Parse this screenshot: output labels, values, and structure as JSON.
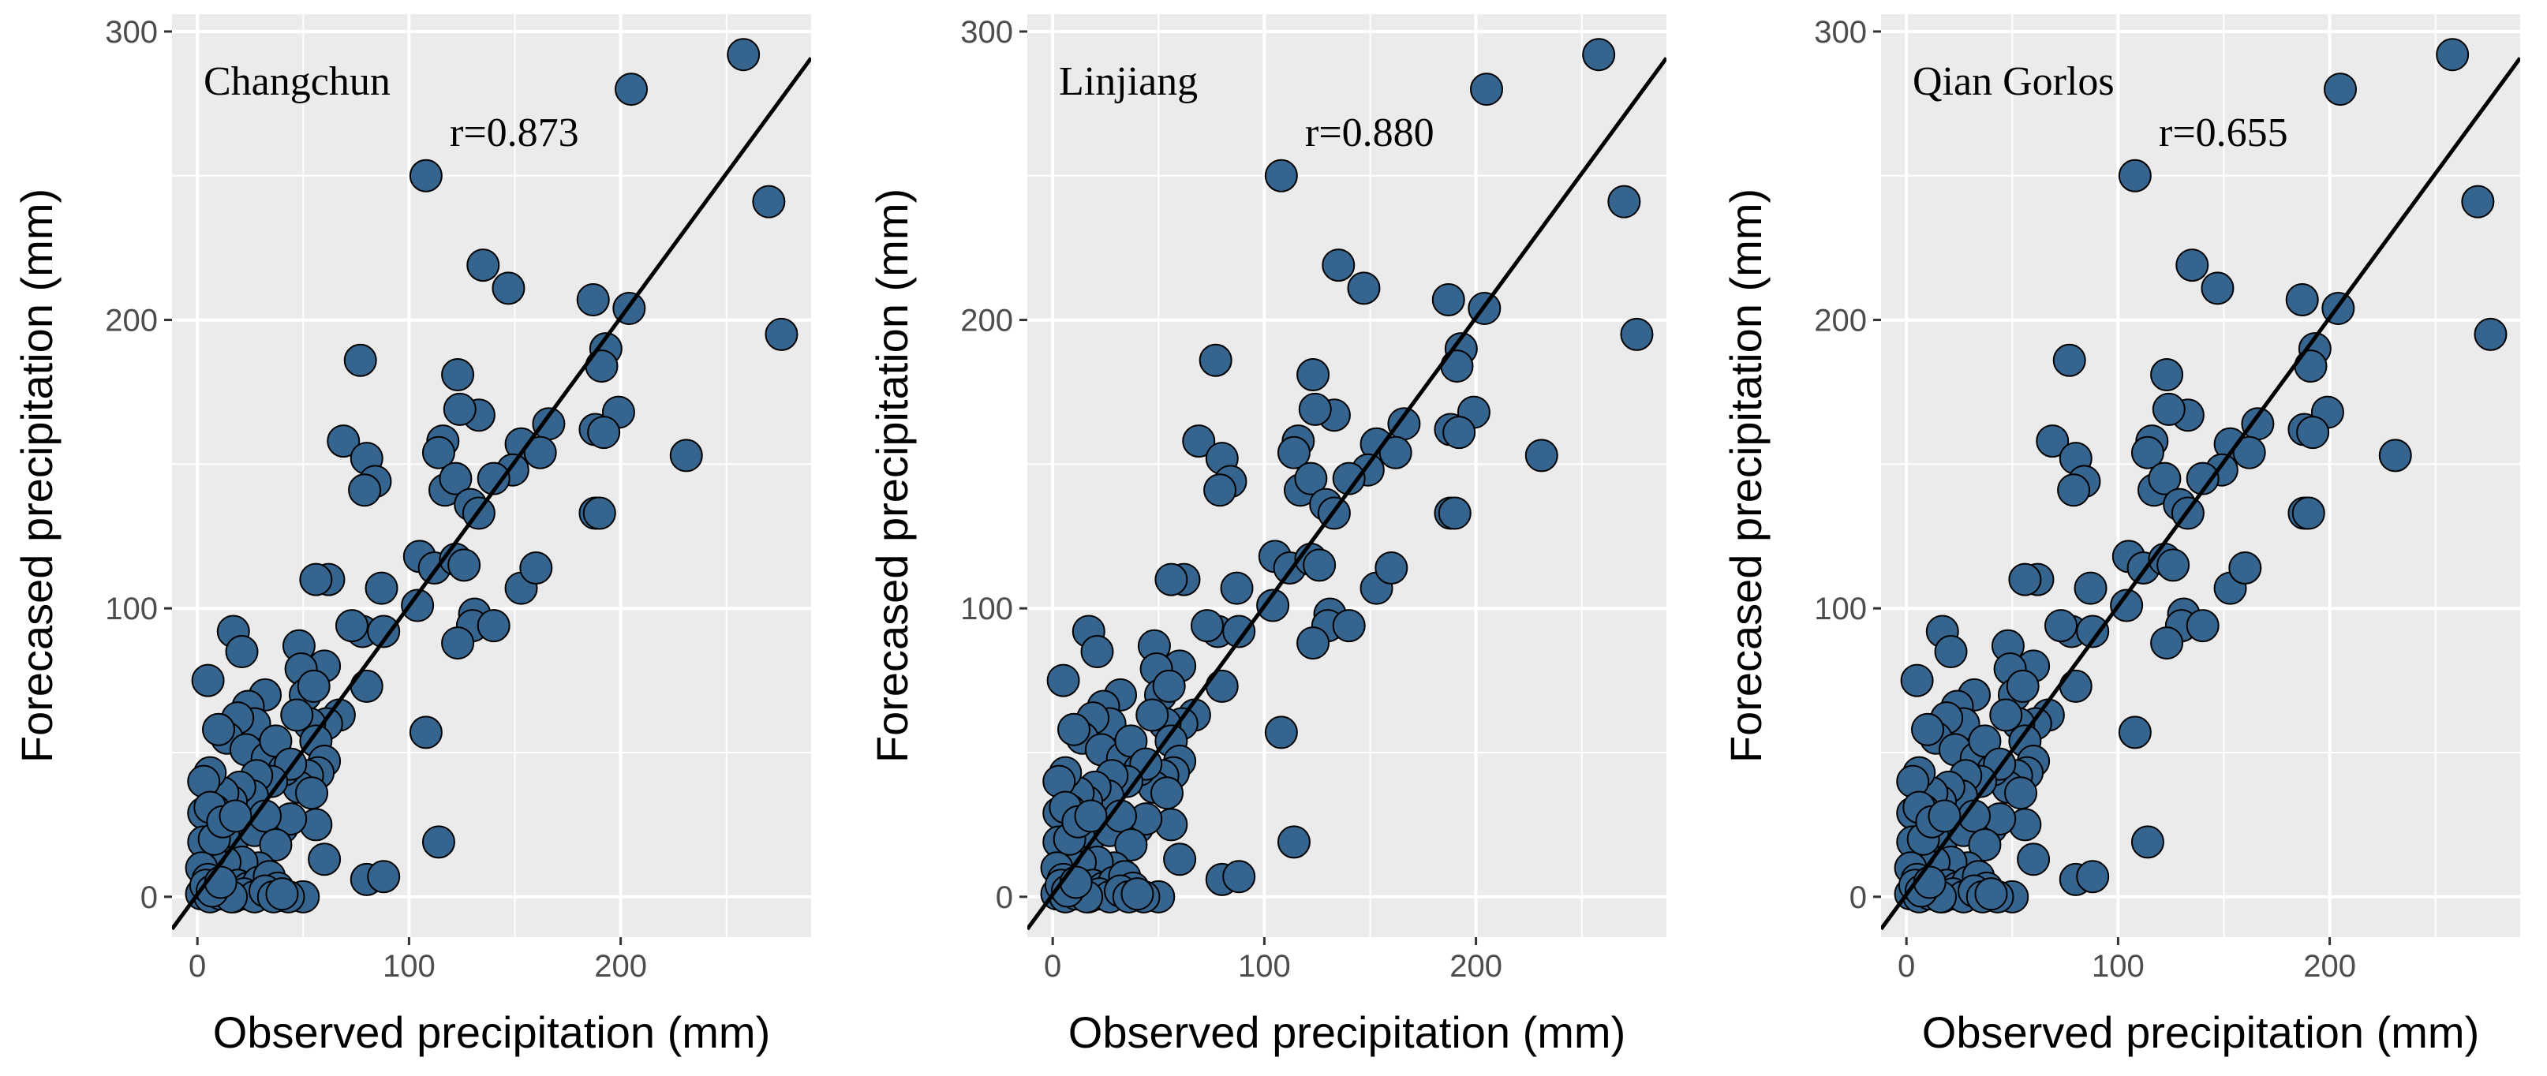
{
  "chart_data": {
    "type": "scatter",
    "xlabel": "Observed precipitation (mm)",
    "ylabel": "Forecased precipitation (mm)",
    "xlim": [
      -12,
      290
    ],
    "ylim": [
      -14,
      306
    ],
    "xticks": [
      0,
      100,
      200
    ],
    "yticks": [
      0,
      100,
      200,
      300
    ],
    "grid": true,
    "colors": {
      "panel_bg": "#ebebeb",
      "grid": "#ffffff",
      "point_fill": "#35658f",
      "point_stroke": "#000000",
      "line": "#000000"
    },
    "panels": [
      {
        "title": "Changchun",
        "r_label": "r=0.873",
        "fit": {
          "slope": 1.0,
          "intercept": 0.8
        }
      },
      {
        "title": "Linjiang",
        "r_label": "r=0.880",
        "fit": {
          "slope": 1.0,
          "intercept": 0.8
        }
      },
      {
        "title": "Qian Gorlos",
        "r_label": "r=0.655",
        "fit": {
          "slope": 1.0,
          "intercept": 0.8
        }
      }
    ],
    "points": [
      [
        258,
        292
      ],
      [
        205,
        280
      ],
      [
        270,
        241
      ],
      [
        276,
        195
      ],
      [
        108,
        250
      ],
      [
        135,
        219
      ],
      [
        147,
        211
      ],
      [
        187,
        207
      ],
      [
        204,
        204
      ],
      [
        193,
        190
      ],
      [
        191,
        184
      ],
      [
        199,
        168
      ],
      [
        188,
        162
      ],
      [
        192,
        161
      ],
      [
        188,
        133
      ],
      [
        190,
        133
      ],
      [
        231,
        153
      ],
      [
        166,
        164
      ],
      [
        153,
        157
      ],
      [
        162,
        154
      ],
      [
        149,
        148
      ],
      [
        140,
        145
      ],
      [
        133,
        167
      ],
      [
        123,
        181
      ],
      [
        124,
        169
      ],
      [
        116,
        158
      ],
      [
        114,
        154
      ],
      [
        117,
        141
      ],
      [
        122,
        145
      ],
      [
        129,
        136
      ],
      [
        133,
        133
      ],
      [
        105,
        118
      ],
      [
        104,
        101
      ],
      [
        112,
        114
      ],
      [
        122,
        117
      ],
      [
        126,
        115
      ],
      [
        131,
        98
      ],
      [
        130,
        94
      ],
      [
        140,
        94
      ],
      [
        123,
        88
      ],
      [
        153,
        107
      ],
      [
        160,
        114
      ],
      [
        108,
        57
      ],
      [
        114,
        19
      ],
      [
        77,
        186
      ],
      [
        69,
        158
      ],
      [
        80,
        152
      ],
      [
        84,
        144
      ],
      [
        79,
        141
      ],
      [
        78,
        92
      ],
      [
        87,
        107
      ],
      [
        62,
        110
      ],
      [
        56,
        110
      ],
      [
        88,
        92
      ],
      [
        73,
        94
      ],
      [
        80,
        73
      ],
      [
        60,
        80
      ],
      [
        48,
        87
      ],
      [
        49,
        79
      ],
      [
        51,
        70
      ],
      [
        55,
        73
      ],
      [
        67,
        63
      ],
      [
        61,
        60
      ],
      [
        53,
        60
      ],
      [
        47,
        63
      ],
      [
        56,
        54
      ],
      [
        60,
        47
      ],
      [
        57,
        43
      ],
      [
        52,
        42
      ],
      [
        48,
        38
      ],
      [
        54,
        36
      ],
      [
        56,
        25
      ],
      [
        60,
        13
      ],
      [
        80,
        6
      ],
      [
        88,
        7
      ],
      [
        50,
        0
      ],
      [
        17,
        92
      ],
      [
        21,
        85
      ],
      [
        5,
        75
      ],
      [
        32,
        70
      ],
      [
        24,
        66
      ],
      [
        27,
        60
      ],
      [
        19,
        62
      ],
      [
        14,
        55
      ],
      [
        10,
        58
      ],
      [
        23,
        51
      ],
      [
        33,
        48
      ],
      [
        37,
        54
      ],
      [
        41,
        44
      ],
      [
        44,
        46
      ],
      [
        35,
        40
      ],
      [
        28,
        42
      ],
      [
        26,
        35
      ],
      [
        20,
        38
      ],
      [
        16,
        33
      ],
      [
        12,
        36
      ],
      [
        6,
        43
      ],
      [
        3,
        40
      ],
      [
        8,
        30
      ],
      [
        3,
        29
      ],
      [
        13,
        24
      ],
      [
        19,
        22
      ],
      [
        27,
        23
      ],
      [
        40,
        24
      ],
      [
        44,
        27
      ],
      [
        32,
        28
      ],
      [
        37,
        18
      ],
      [
        29,
        10
      ],
      [
        21,
        12
      ],
      [
        13,
        12
      ],
      [
        6,
        15
      ],
      [
        3,
        19
      ],
      [
        8,
        20
      ],
      [
        2,
        10
      ],
      [
        5,
        6
      ],
      [
        9,
        4
      ],
      [
        14,
        2
      ],
      [
        19,
        4
      ],
      [
        24,
        3
      ],
      [
        29,
        5
      ],
      [
        34,
        7
      ],
      [
        38,
        3
      ],
      [
        43,
        0
      ],
      [
        2,
        1
      ],
      [
        6,
        0
      ],
      [
        11,
        1
      ],
      [
        17,
        0
      ],
      [
        22,
        1
      ],
      [
        27,
        0
      ],
      [
        32,
        2
      ],
      [
        36,
        0
      ],
      [
        40,
        1
      ],
      [
        16,
        0
      ],
      [
        4,
        4
      ],
      [
        7,
        2
      ],
      [
        11,
        5
      ],
      [
        6,
        31
      ],
      [
        12,
        26
      ],
      [
        18,
        28
      ]
    ]
  }
}
